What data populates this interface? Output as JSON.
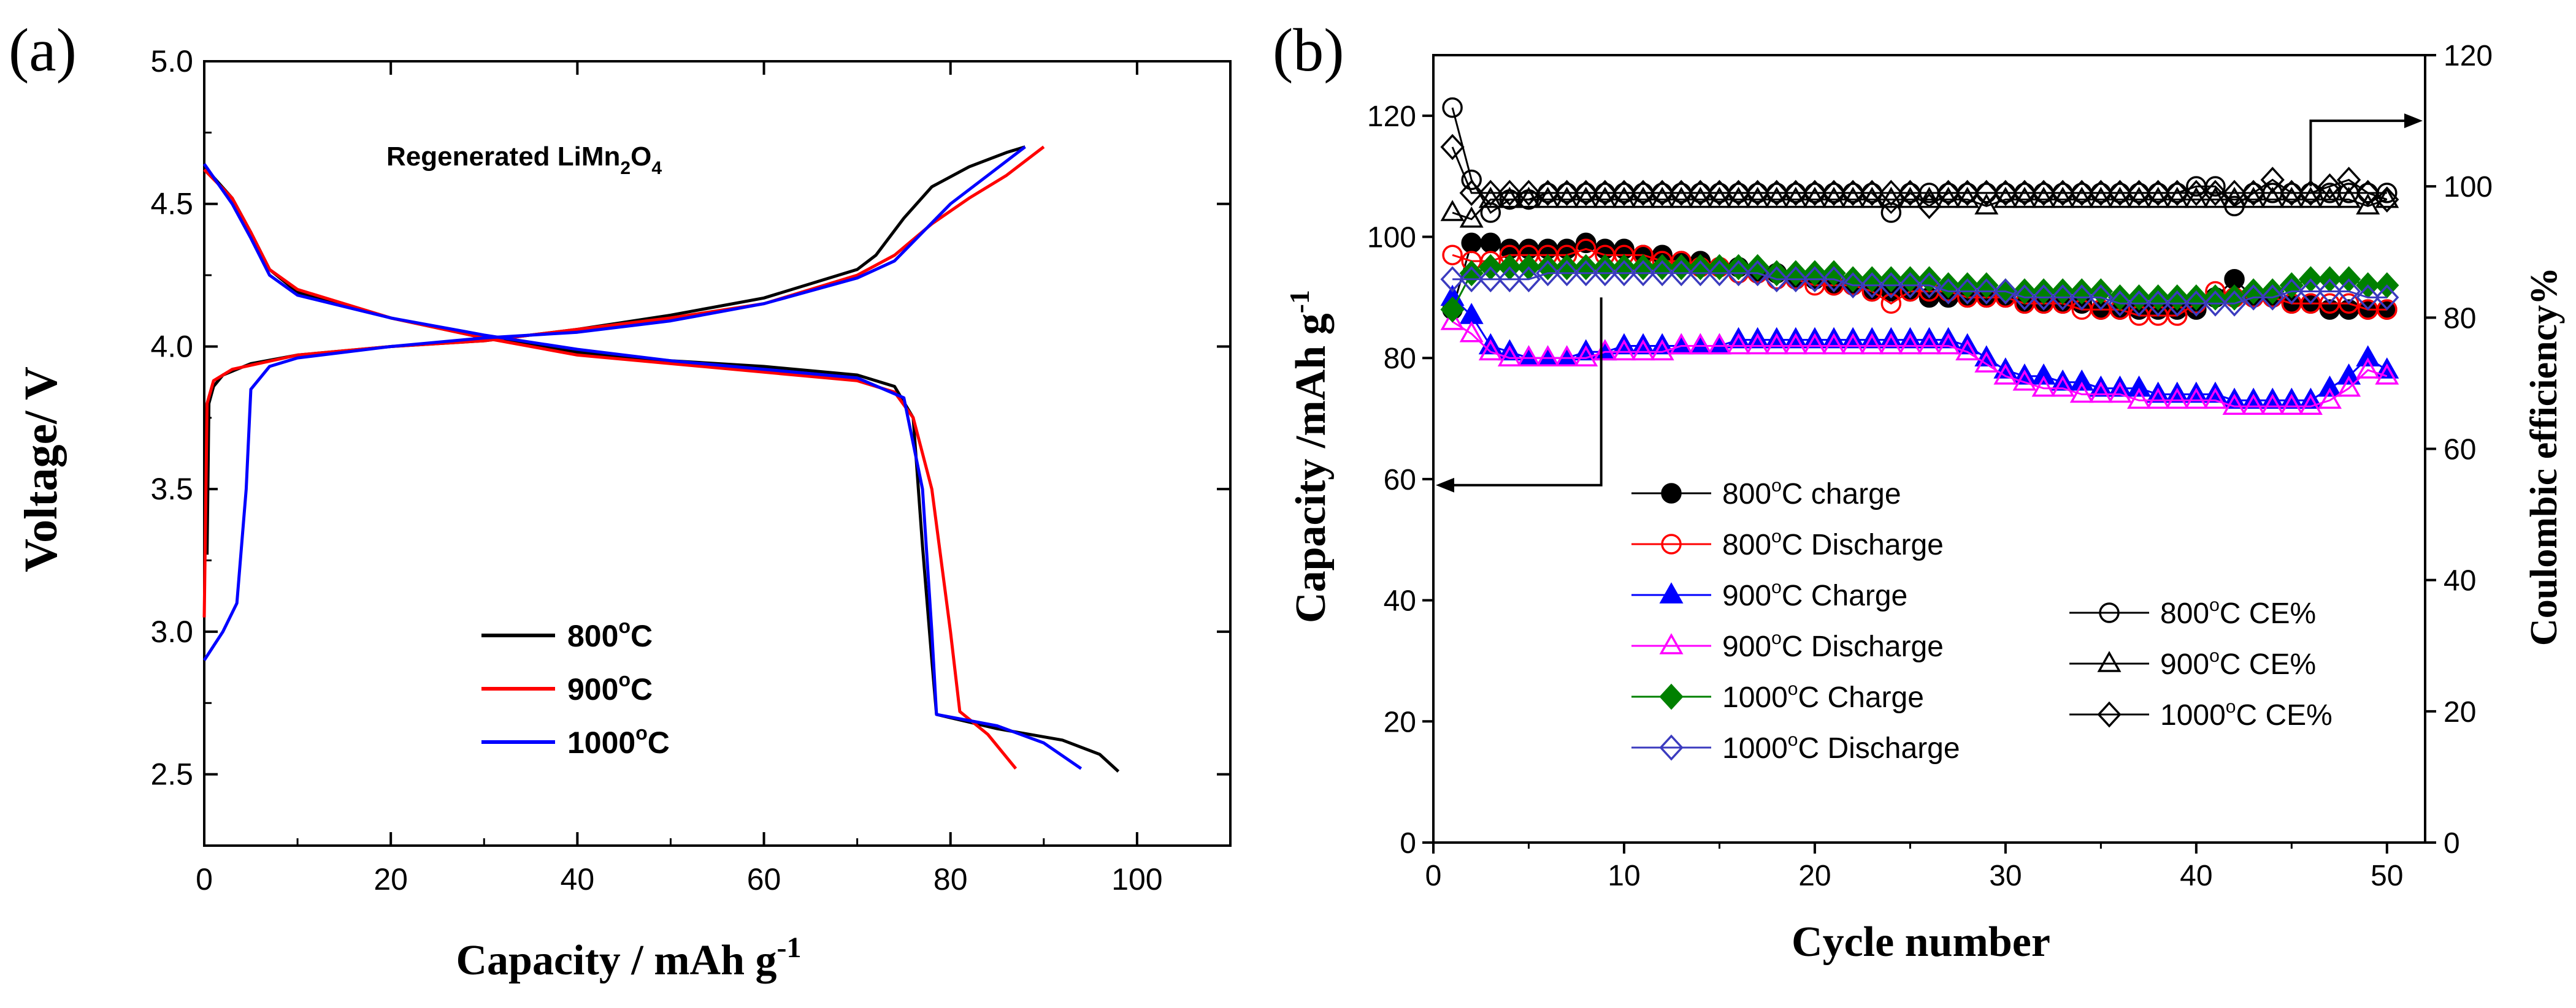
{
  "chart_data": [
    {
      "panel_label": "(a)",
      "type": "line",
      "title": "Regenerated LiMn",
      "title_sub": "2",
      "title_mid": "O",
      "title_sub2": "4",
      "xlabel": "Capacity / mAh g",
      "xlabel_sup": "-1",
      "ylabel": "Voltage/ V",
      "xlim": [
        0,
        110
      ],
      "ylim": [
        2.25,
        5.0
      ],
      "xticks": [
        0,
        20,
        40,
        60,
        80,
        100
      ],
      "xtick_labels": [
        "0",
        "20",
        "40",
        "60",
        "80",
        "100"
      ],
      "yticks": [
        2.5,
        3.0,
        3.5,
        4.0,
        4.5,
        5.0
      ],
      "ytick_labels": [
        "2.5",
        "3.0",
        "3.5",
        "4.0",
        "4.5",
        "5.0"
      ],
      "legend_position": "lower-left",
      "series": [
        {
          "name": "800°C",
          "label_main": "800",
          "label_deg": "o",
          "label_unit": "C",
          "color": "#000000",
          "charge": [
            [
              0.3,
              3.27
            ],
            [
              0.5,
              3.8
            ],
            [
              1,
              3.86
            ],
            [
              2,
              3.9
            ],
            [
              5,
              3.94
            ],
            [
              10,
              3.97
            ],
            [
              20,
              4.0
            ],
            [
              30,
              4.02
            ],
            [
              40,
              4.06
            ],
            [
              50,
              4.11
            ],
            [
              60,
              4.17
            ],
            [
              70,
              4.27
            ],
            [
              72,
              4.32
            ],
            [
              75,
              4.45
            ],
            [
              78,
              4.56
            ],
            [
              82,
              4.63
            ],
            [
              86,
              4.68
            ],
            [
              88,
              4.7
            ]
          ],
          "discharge": [
            [
              0,
              4.63
            ],
            [
              3,
              4.52
            ],
            [
              5,
              4.4
            ],
            [
              7,
              4.27
            ],
            [
              10,
              4.19
            ],
            [
              20,
              4.1
            ],
            [
              30,
              4.03
            ],
            [
              40,
              3.98
            ],
            [
              50,
              3.95
            ],
            [
              60,
              3.93
            ],
            [
              70,
              3.9
            ],
            [
              74,
              3.86
            ],
            [
              76,
              3.75
            ],
            [
              77,
              3.3
            ],
            [
              78,
              2.9
            ],
            [
              78.5,
              2.71
            ],
            [
              85,
              2.66
            ],
            [
              92,
              2.62
            ],
            [
              96,
              2.57
            ],
            [
              98,
              2.51
            ]
          ]
        },
        {
          "name": "900°C",
          "label_main": "900",
          "label_deg": "o",
          "label_unit": "C",
          "color": "#ff0000",
          "charge": [
            [
              0,
              3.05
            ],
            [
              0.3,
              3.8
            ],
            [
              1,
              3.88
            ],
            [
              3,
              3.92
            ],
            [
              10,
              3.97
            ],
            [
              20,
              4.0
            ],
            [
              30,
              4.02
            ],
            [
              40,
              4.06
            ],
            [
              50,
              4.1
            ],
            [
              60,
              4.15
            ],
            [
              70,
              4.25
            ],
            [
              74,
              4.32
            ],
            [
              78,
              4.43
            ],
            [
              82,
              4.52
            ],
            [
              86,
              4.6
            ],
            [
              90,
              4.7
            ]
          ],
          "discharge": [
            [
              0,
              4.62
            ],
            [
              3,
              4.52
            ],
            [
              5,
              4.4
            ],
            [
              7,
              4.27
            ],
            [
              10,
              4.2
            ],
            [
              20,
              4.1
            ],
            [
              30,
              4.03
            ],
            [
              40,
              3.97
            ],
            [
              50,
              3.94
            ],
            [
              60,
              3.91
            ],
            [
              70,
              3.88
            ],
            [
              74,
              3.84
            ],
            [
              76,
              3.75
            ],
            [
              78,
              3.5
            ],
            [
              80,
              3.0
            ],
            [
              81,
              2.72
            ],
            [
              84,
              2.64
            ],
            [
              87,
              2.52
            ]
          ]
        },
        {
          "name": "1000°C",
          "label_main": "1000",
          "label_deg": "o",
          "label_unit": "C",
          "color": "#0000ff",
          "charge": [
            [
              0,
              2.9
            ],
            [
              2,
              3.0
            ],
            [
              3.5,
              3.1
            ],
            [
              4.5,
              3.5
            ],
            [
              5,
              3.85
            ],
            [
              7,
              3.93
            ],
            [
              10,
              3.96
            ],
            [
              20,
              4.0
            ],
            [
              30,
              4.03
            ],
            [
              40,
              4.05
            ],
            [
              50,
              4.09
            ],
            [
              60,
              4.15
            ],
            [
              70,
              4.24
            ],
            [
              74,
              4.3
            ],
            [
              77,
              4.4
            ],
            [
              80,
              4.5
            ],
            [
              84,
              4.6
            ],
            [
              88,
              4.7
            ]
          ],
          "discharge": [
            [
              0,
              4.64
            ],
            [
              3,
              4.5
            ],
            [
              5,
              4.38
            ],
            [
              7,
              4.25
            ],
            [
              10,
              4.18
            ],
            [
              20,
              4.1
            ],
            [
              30,
              4.04
            ],
            [
              40,
              3.99
            ],
            [
              50,
              3.95
            ],
            [
              60,
              3.92
            ],
            [
              70,
              3.89
            ],
            [
              75,
              3.82
            ],
            [
              77,
              3.5
            ],
            [
              78,
              3.0
            ],
            [
              78.5,
              2.71
            ],
            [
              85,
              2.67
            ],
            [
              90,
              2.61
            ],
            [
              94,
              2.52
            ]
          ]
        }
      ]
    },
    {
      "panel_label": "(b)",
      "type": "scatter",
      "xlabel": "Cycle number",
      "ylabel": "Capacity /mAh g",
      "ylabel_sup": "-1",
      "y2label": "Coulombic efficiency%",
      "xlim": [
        0,
        52
      ],
      "ylim": [
        0,
        130
      ],
      "y2lim": [
        0,
        120
      ],
      "xticks": [
        0,
        10,
        20,
        30,
        40,
        50
      ],
      "xtick_labels": [
        "0",
        "10",
        "20",
        "30",
        "40",
        "50"
      ],
      "yticks": [
        0,
        20,
        40,
        60,
        80,
        100,
        120
      ],
      "ytick_labels": [
        "0",
        "20",
        "40",
        "60",
        "80",
        "100",
        "120"
      ],
      "y2ticks": [
        0,
        20,
        40,
        60,
        80,
        100,
        120
      ],
      "y2tick_labels": [
        "0",
        "20",
        "40",
        "60",
        "80",
        "100",
        "120"
      ],
      "arrow_left_target": "left axis",
      "arrow_right_target": "right axis",
      "series": [
        {
          "name": "800°C charge",
          "label_main": "800",
          "label_deg": "o",
          "label_rest": "C charge",
          "marker": "circle",
          "fill": "#000000",
          "stroke": "#000000",
          "axis": "left",
          "values": [
            88,
            99,
            99,
            98,
            98,
            98,
            98,
            99,
            98,
            98,
            97,
            97,
            96,
            96,
            95,
            95,
            94,
            94,
            93,
            93,
            92,
            92,
            91,
            91,
            91,
            90,
            90,
            90,
            90,
            90,
            89,
            89,
            89,
            89,
            88,
            88,
            88,
            88,
            88,
            88,
            90,
            93,
            90,
            90,
            89,
            89,
            88,
            88,
            88,
            88
          ]
        },
        {
          "name": "800°C Discharge",
          "label_main": "800",
          "label_deg": "o",
          "label_rest": "C Discharge",
          "marker": "circle",
          "fill": "none",
          "stroke": "#ff0000",
          "axis": "left",
          "values": [
            97,
            96,
            96,
            97,
            97,
            97,
            97,
            98,
            97,
            97,
            97,
            96,
            96,
            95,
            95,
            94,
            94,
            93,
            93,
            92,
            92,
            92,
            91,
            89,
            91,
            91,
            91,
            90,
            90,
            90,
            89,
            89,
            89,
            88,
            88,
            88,
            87,
            87,
            87,
            89,
            91,
            90,
            90,
            90,
            89,
            89,
            89,
            89,
            88,
            88
          ]
        },
        {
          "name": "900°C Charge",
          "label_main": "900",
          "label_deg": "o",
          "label_rest": "C Charge",
          "marker": "triangle",
          "fill": "#0000ff",
          "stroke": "#0000ff",
          "axis": "left",
          "values": [
            90,
            87,
            82,
            81,
            80,
            80,
            80,
            81,
            81,
            82,
            82,
            82,
            82,
            82,
            82,
            83,
            83,
            83,
            83,
            83,
            83,
            83,
            83,
            83,
            83,
            83,
            83,
            82,
            80,
            78,
            77,
            77,
            76,
            76,
            75,
            75,
            75,
            74,
            74,
            74,
            74,
            73,
            73,
            73,
            73,
            73,
            75,
            77,
            80,
            78
          ]
        },
        {
          "name": "900°C Discharge",
          "label_main": "900",
          "label_deg": "o",
          "label_rest": "C Discharge",
          "marker": "triangle",
          "fill": "none",
          "stroke": "#ff00ff",
          "axis": "left",
          "values": [
            86,
            84,
            81,
            80,
            80,
            80,
            80,
            80,
            81,
            81,
            81,
            81,
            82,
            82,
            82,
            82,
            82,
            82,
            82,
            82,
            82,
            82,
            82,
            82,
            82,
            82,
            82,
            81,
            79,
            77,
            76,
            75,
            75,
            74,
            74,
            74,
            73,
            73,
            73,
            73,
            73,
            72,
            72,
            72,
            72,
            72,
            73,
            75,
            78,
            77
          ]
        },
        {
          "name": "1000°C Charge",
          "label_main": "1000",
          "label_deg": "o",
          "label_rest": "C Charge",
          "marker": "diamond",
          "fill": "#008000",
          "stroke": "#008000",
          "axis": "left",
          "values": [
            88,
            94,
            95,
            95,
            95,
            95,
            95,
            95,
            95,
            95,
            95,
            95,
            95,
            95,
            95,
            95,
            95,
            94,
            94,
            94,
            94,
            93,
            93,
            93,
            93,
            93,
            92,
            92,
            92,
            91,
            91,
            91,
            91,
            91,
            91,
            90,
            90,
            90,
            90,
            90,
            90,
            90,
            91,
            91,
            92,
            93,
            93,
            93,
            92,
            92
          ]
        },
        {
          "name": "1000°C Discharge",
          "label_main": "1000",
          "label_deg": "o",
          "label_rest": "C Discharge",
          "marker": "diamond",
          "fill": "none",
          "stroke": "#3b3bbf",
          "axis": "left",
          "values": [
            93,
            93,
            93,
            93,
            93,
            94,
            94,
            94,
            94,
            94,
            94,
            94,
            94,
            94,
            94,
            94,
            94,
            93,
            93,
            93,
            93,
            92,
            92,
            92,
            92,
            92,
            91,
            91,
            91,
            91,
            90,
            90,
            90,
            90,
            90,
            89,
            89,
            89,
            89,
            89,
            89,
            89,
            90,
            90,
            91,
            91,
            91,
            91,
            90,
            90
          ]
        },
        {
          "name": "800°C CE%",
          "label_main": "800",
          "label_deg": "o",
          "label_rest": "C CE%",
          "marker": "circle",
          "fill": "none",
          "stroke": "#000000",
          "axis": "right",
          "values": [
            112,
            101,
            96,
            98,
            98,
            99,
            99,
            99,
            99,
            99,
            99,
            99,
            99,
            99,
            99,
            99,
            99,
            99,
            99,
            99,
            99,
            99,
            99,
            96,
            99,
            99,
            99,
            99,
            99,
            99,
            99,
            99,
            99,
            99,
            99,
            99,
            99,
            99,
            99,
            100,
            100,
            97,
            99,
            99,
            99,
            99,
            99,
            99,
            99,
            99
          ]
        },
        {
          "name": "900°C CE%",
          "label_main": "900",
          "label_deg": "o",
          "label_rest": "C CE%",
          "marker": "triangle",
          "fill": "none",
          "stroke": "#000000",
          "axis": "right",
          "values": [
            96,
            95,
            98,
            98,
            98,
            98,
            98,
            98,
            98,
            98,
            98,
            98,
            98,
            98,
            98,
            98,
            98,
            98,
            98,
            98,
            98,
            98,
            98,
            98,
            98,
            98,
            98,
            98,
            97,
            98,
            98,
            98,
            98,
            98,
            98,
            98,
            98,
            98,
            98,
            98,
            98,
            98,
            98,
            98,
            98,
            98,
            98,
            98,
            97,
            98
          ]
        },
        {
          "name": "1000°C CE%",
          "label_main": "1000",
          "label_deg": "o",
          "label_rest": "C CE%",
          "marker": "diamond",
          "fill": "none",
          "stroke": "#000000",
          "axis": "right",
          "values": [
            106,
            99,
            99,
            99,
            99,
            99,
            99,
            99,
            99,
            99,
            99,
            99,
            99,
            99,
            99,
            99,
            99,
            99,
            99,
            99,
            99,
            99,
            99,
            99,
            99,
            97,
            99,
            99,
            99,
            99,
            99,
            99,
            99,
            99,
            99,
            99,
            99,
            99,
            99,
            99,
            99,
            99,
            99,
            101,
            99,
            99,
            100,
            101,
            99,
            98
          ]
        }
      ]
    }
  ]
}
